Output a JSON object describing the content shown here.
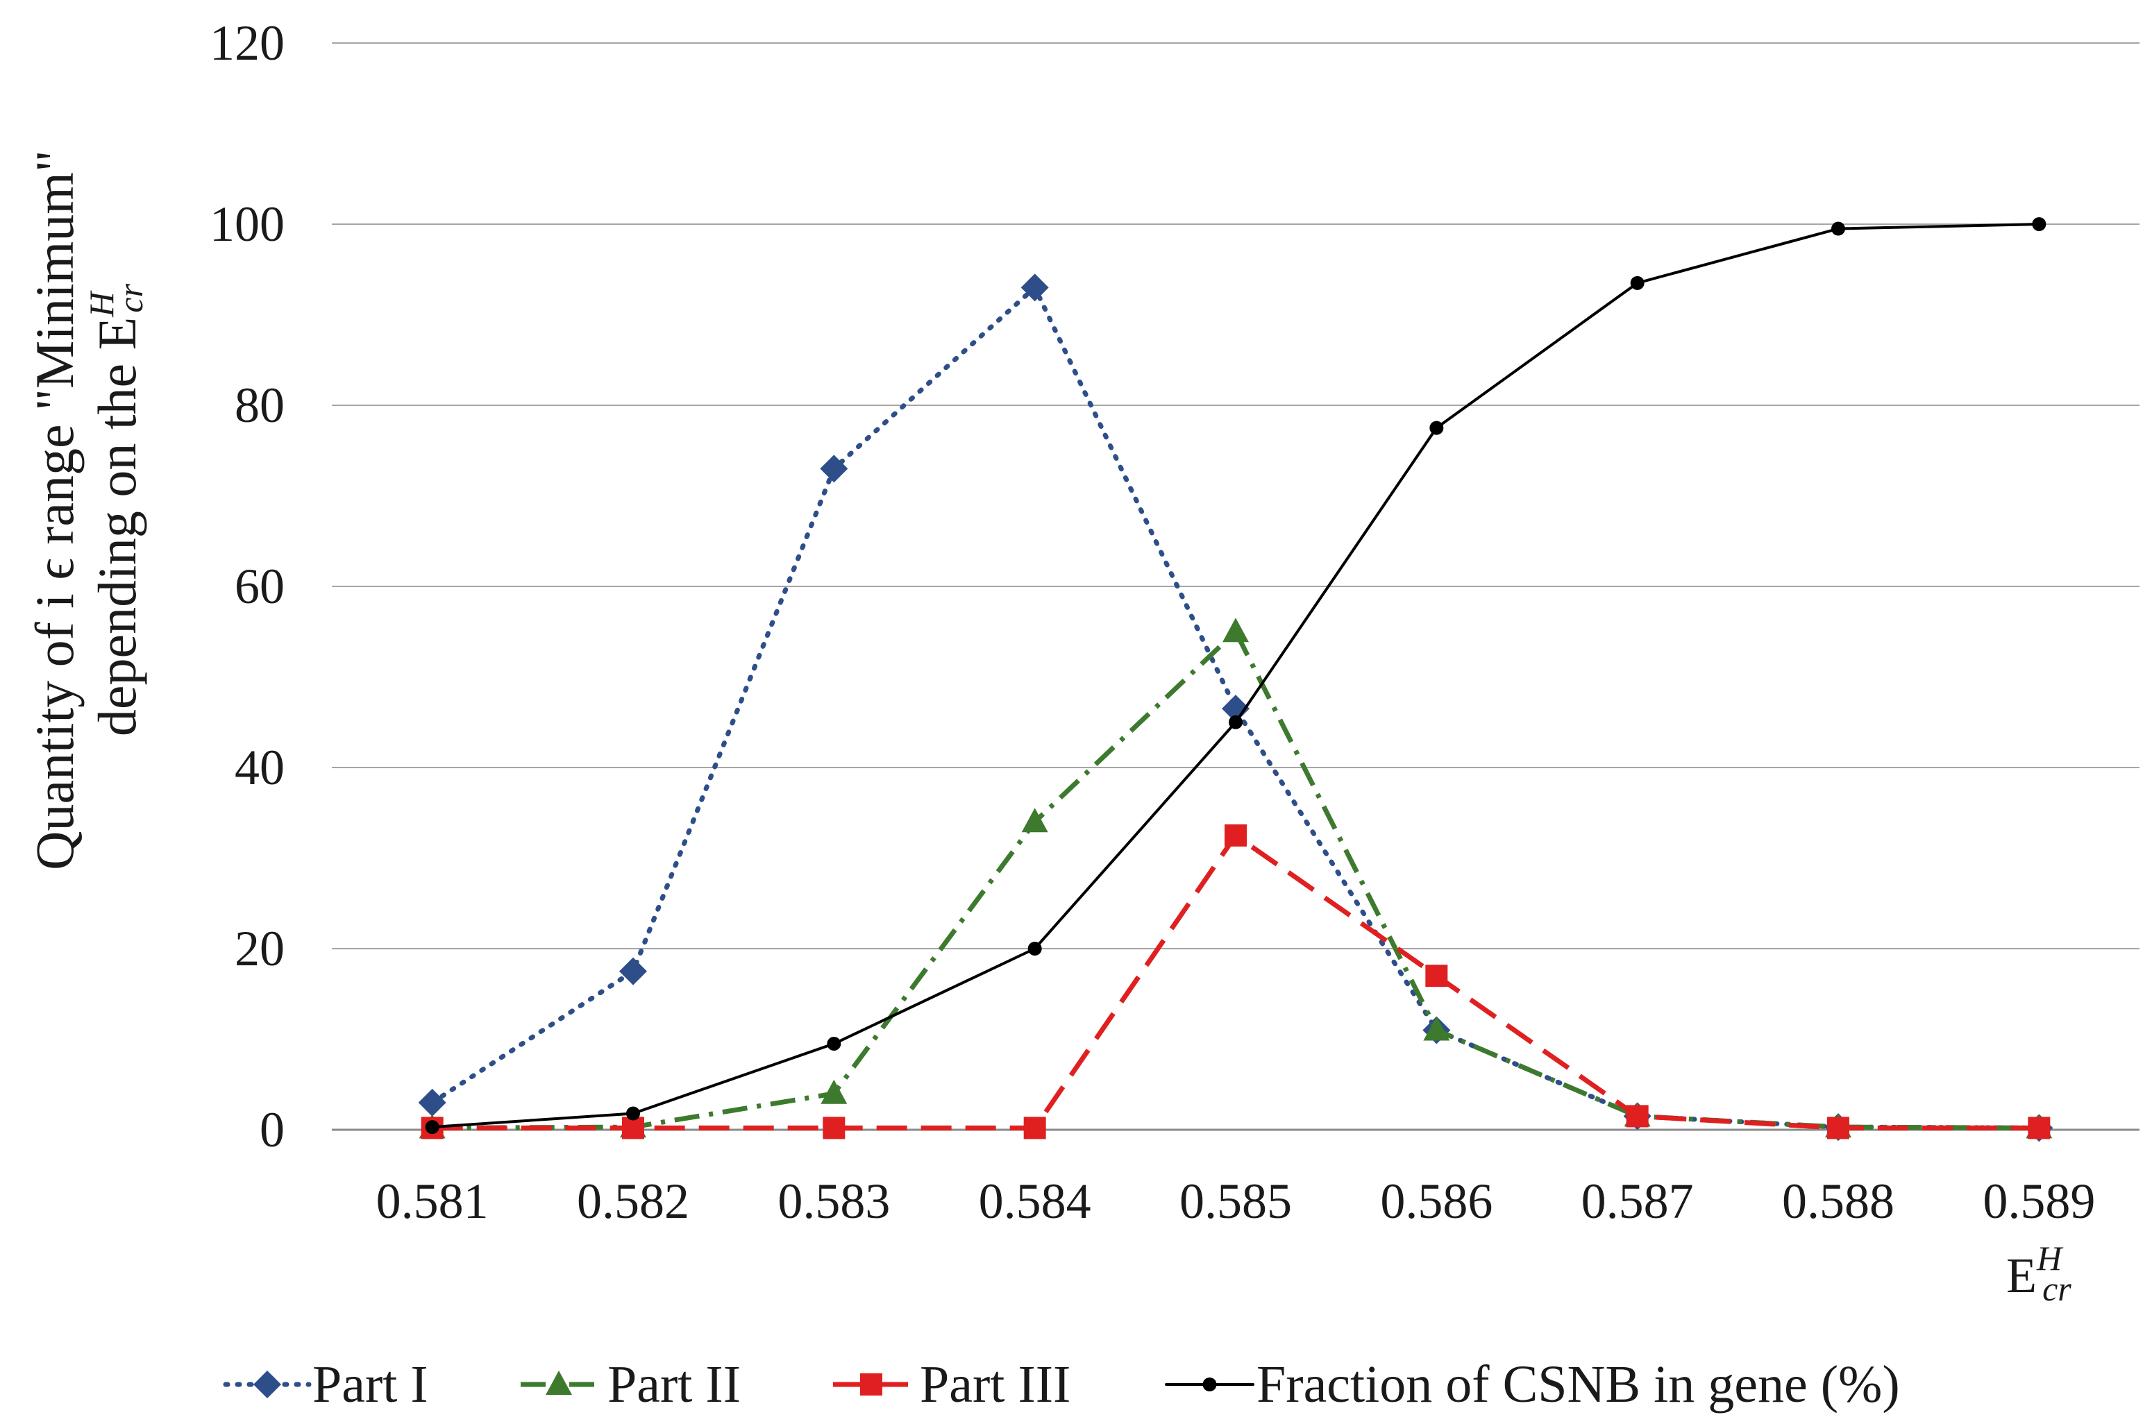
{
  "chart_data": {
    "type": "line",
    "ylabel_line1": "Quantity of i ϵ range \"Minimum\"",
    "ylabel_line2_main": "depending on the E",
    "ylabel_line2_sup": "H",
    "ylabel_line2_sub": "cr",
    "xlabel_main": "E",
    "xlabel_sup": "H",
    "xlabel_sub": "cr",
    "x": [
      "0.581",
      "0.582",
      "0.583",
      "0.584",
      "0.585",
      "0.586",
      "0.587",
      "0.588",
      "0.589"
    ],
    "ylim": [
      0,
      120
    ],
    "yticks": [
      0,
      20,
      40,
      60,
      80,
      100,
      120
    ],
    "grid": true,
    "legend_position": "bottom",
    "series": [
      {
        "name": "Part I",
        "color": "#2e4e8a",
        "style": "dotted",
        "marker": "diamond",
        "values": [
          3,
          17.5,
          73,
          93,
          46.5,
          11,
          1.5,
          0.3,
          0.2
        ]
      },
      {
        "name": "Part II",
        "color": "#3d7a2e",
        "style": "dashdot",
        "marker": "triangle",
        "values": [
          0.2,
          0.3,
          4,
          34,
          55,
          11,
          1.5,
          0.3,
          0.2
        ]
      },
      {
        "name": "Part III",
        "color": "#e02020",
        "style": "dashed",
        "marker": "square",
        "values": [
          0.2,
          0.2,
          0.2,
          0.2,
          32.5,
          17,
          1.5,
          0.2,
          0.2
        ]
      },
      {
        "name": "Fraction of CSNB in gene (%)",
        "color": "#000000",
        "style": "solid",
        "marker": "circle",
        "values": [
          0.3,
          1.8,
          9.5,
          20,
          45,
          77.5,
          93.5,
          99.5,
          100
        ]
      }
    ]
  }
}
